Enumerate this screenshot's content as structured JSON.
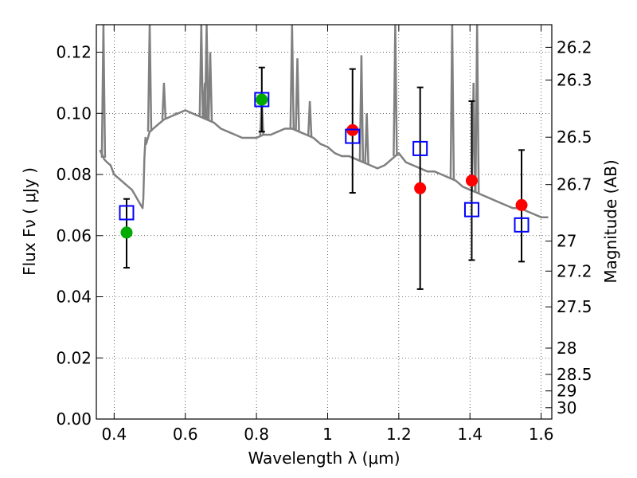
{
  "chart_data": {
    "type": "scatter",
    "xlabel": "Wavelength  λ (μm)",
    "ylabel": "Flux  Fν  ( μJy )",
    "y2label": "Magnitude (AB)",
    "xlim": [
      0.35,
      1.63
    ],
    "ylim": [
      0.0,
      0.129
    ],
    "grid": true,
    "x_ticks": [
      0.4,
      0.6,
      0.8,
      1.0,
      1.2,
      1.4,
      1.6
    ],
    "x_tick_labels": [
      "0.4",
      "0.6",
      "0.8",
      "1",
      "1.2",
      "1.4",
      "1.6"
    ],
    "y_ticks": [
      0.0,
      0.02,
      0.04,
      0.06,
      0.08,
      0.1,
      0.12
    ],
    "y_tick_labels": [
      "0.00",
      "0.02",
      "0.04",
      "0.06",
      "0.08",
      "0.10",
      "0.12"
    ],
    "y2_ticks": [
      {
        "label": "26.2",
        "flux": 0.1216
      },
      {
        "label": "26.3",
        "flux": 0.1109
      },
      {
        "label": "26.5",
        "flux": 0.0922
      },
      {
        "label": "26.7",
        "flux": 0.0767
      },
      {
        "label": "27",
        "flux": 0.0582
      },
      {
        "label": "27.2",
        "flux": 0.0484
      },
      {
        "label": "27.5",
        "flux": 0.0367
      },
      {
        "label": "28",
        "flux": 0.0232
      },
      {
        "label": "28.5",
        "flux": 0.0146
      },
      {
        "label": "29",
        "flux": 0.0092
      },
      {
        "label": "30",
        "flux": 0.0037
      }
    ],
    "series": [
      {
        "type": "line",
        "color": "#808080",
        "x": [
          0.36,
          0.372,
          0.38,
          0.39,
          0.4,
          0.42,
          0.44,
          0.45,
          0.46,
          0.47,
          0.48,
          0.482,
          0.485,
          0.488,
          0.49,
          0.495,
          0.5,
          0.52,
          0.54,
          0.56,
          0.58,
          0.6,
          0.62,
          0.64,
          0.66,
          0.68,
          0.7,
          0.72,
          0.74,
          0.76,
          0.78,
          0.8,
          0.82,
          0.84,
          0.86,
          0.88,
          0.9,
          0.92,
          0.94,
          0.96,
          0.98,
          1.0,
          1.02,
          1.04,
          1.06,
          1.08,
          1.1,
          1.12,
          1.14,
          1.16,
          1.18,
          1.2,
          1.22,
          1.24,
          1.26,
          1.28,
          1.3,
          1.32,
          1.34,
          1.36,
          1.38,
          1.4,
          1.42,
          1.44,
          1.46,
          1.48,
          1.5,
          1.52,
          1.54,
          1.56,
          1.58,
          1.6,
          1.62
        ],
        "y": [
          0.088,
          0.085,
          0.084,
          0.083,
          0.08,
          0.078,
          0.076,
          0.075,
          0.073,
          0.071,
          0.069,
          0.072,
          0.085,
          0.092,
          0.09,
          0.092,
          0.094,
          0.096,
          0.098,
          0.099,
          0.1,
          0.101,
          0.1,
          0.099,
          0.098,
          0.097,
          0.095,
          0.094,
          0.093,
          0.092,
          0.092,
          0.092,
          0.093,
          0.093,
          0.094,
          0.095,
          0.095,
          0.094,
          0.093,
          0.092,
          0.09,
          0.089,
          0.087,
          0.086,
          0.086,
          0.085,
          0.084,
          0.083,
          0.082,
          0.083,
          0.085,
          0.087,
          0.084,
          0.083,
          0.082,
          0.081,
          0.081,
          0.08,
          0.079,
          0.078,
          0.076,
          0.075,
          0.074,
          0.073,
          0.072,
          0.071,
          0.07,
          0.069,
          0.069,
          0.068,
          0.067,
          0.066,
          0.066
        ]
      },
      {
        "type": "emission_lines",
        "color": "#808080",
        "x": [
          0.37,
          0.5,
          0.54,
          0.575,
          0.645,
          0.655,
          0.66,
          0.67,
          0.815,
          0.9,
          0.915,
          0.95,
          1.095,
          1.11,
          1.19,
          1.35,
          1.41,
          1.42
        ],
        "y": [
          0.129,
          0.129,
          0.11,
          0.1,
          0.129,
          0.11,
          0.129,
          0.12,
          0.104,
          0.129,
          0.118,
          0.104,
          0.119,
          0.1,
          0.129,
          0.129,
          0.11,
          0.129
        ]
      },
      {
        "name": "",
        "type": "open_square",
        "color": "#0000ff",
        "x": [
          0.435,
          0.815,
          1.07,
          1.26,
          1.405,
          1.545
        ],
        "y": [
          0.0675,
          0.1045,
          0.0925,
          0.0885,
          0.0685,
          0.0635
        ]
      },
      {
        "name": "",
        "type": "filled_circle",
        "color": "#00aa00",
        "x": [
          0.435,
          0.815
        ],
        "y": [
          0.061,
          0.1045
        ]
      },
      {
        "name": "",
        "type": "filled_circle",
        "color": "#ff0000",
        "x": [
          1.07,
          1.26,
          1.405,
          1.545
        ],
        "y": [
          0.0945,
          0.0755,
          0.078,
          0.07
        ]
      },
      {
        "type": "errorbar",
        "color": "#000000",
        "x": [
          0.435,
          0.815,
          1.07,
          1.26,
          1.405,
          1.545
        ],
        "ylow": [
          0.0495,
          0.094,
          0.074,
          0.0425,
          0.052,
          0.0515
        ],
        "yhigh": [
          0.072,
          0.115,
          0.1145,
          0.1085,
          0.104,
          0.088
        ]
      }
    ]
  }
}
